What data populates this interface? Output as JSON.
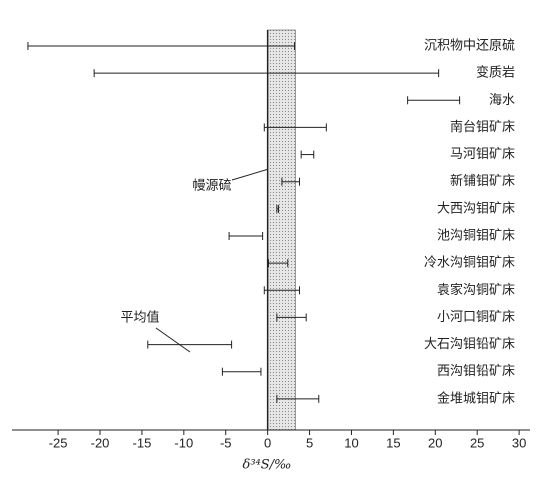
{
  "chart_data": {
    "type": "range",
    "x_label": "δ³⁴S/‰",
    "xlim": [
      -30.5,
      31.3
    ],
    "xticks": [
      -25,
      -20,
      -15,
      -10,
      -5,
      0,
      5,
      10,
      15,
      20,
      25,
      30
    ],
    "reference_line": 0,
    "shaded_range": [
      0,
      3.3
    ],
    "color": "#222222",
    "categories": [
      "沉积物中还原硫",
      "变质岩",
      "海水",
      "南台钼矿床",
      "马河钼矿床",
      "新铺钼矿床",
      "大西沟钼矿床",
      "池沟铜钼矿床",
      "冷水沟铜钼矿床",
      "袁家沟铜矿床",
      "小河口铜矿床",
      "大石沟钼铅矿床",
      "西沟钼铅矿床",
      "金堆城钼矿床"
    ],
    "min": [
      -28.6,
      -20.7,
      16.7,
      -0.4,
      4.0,
      1.7,
      1.1,
      -4.6,
      0.1,
      -0.4,
      1.1,
      -14.3,
      -5.4,
      1.1
    ],
    "max": [
      3.2,
      20.4,
      22.9,
      7.0,
      5.5,
      3.8,
      1.3,
      -0.6,
      2.4,
      3.8,
      4.6,
      -4.3,
      -0.8,
      6.1
    ],
    "annotations": [
      "幔源硫",
      "平均值"
    ]
  }
}
